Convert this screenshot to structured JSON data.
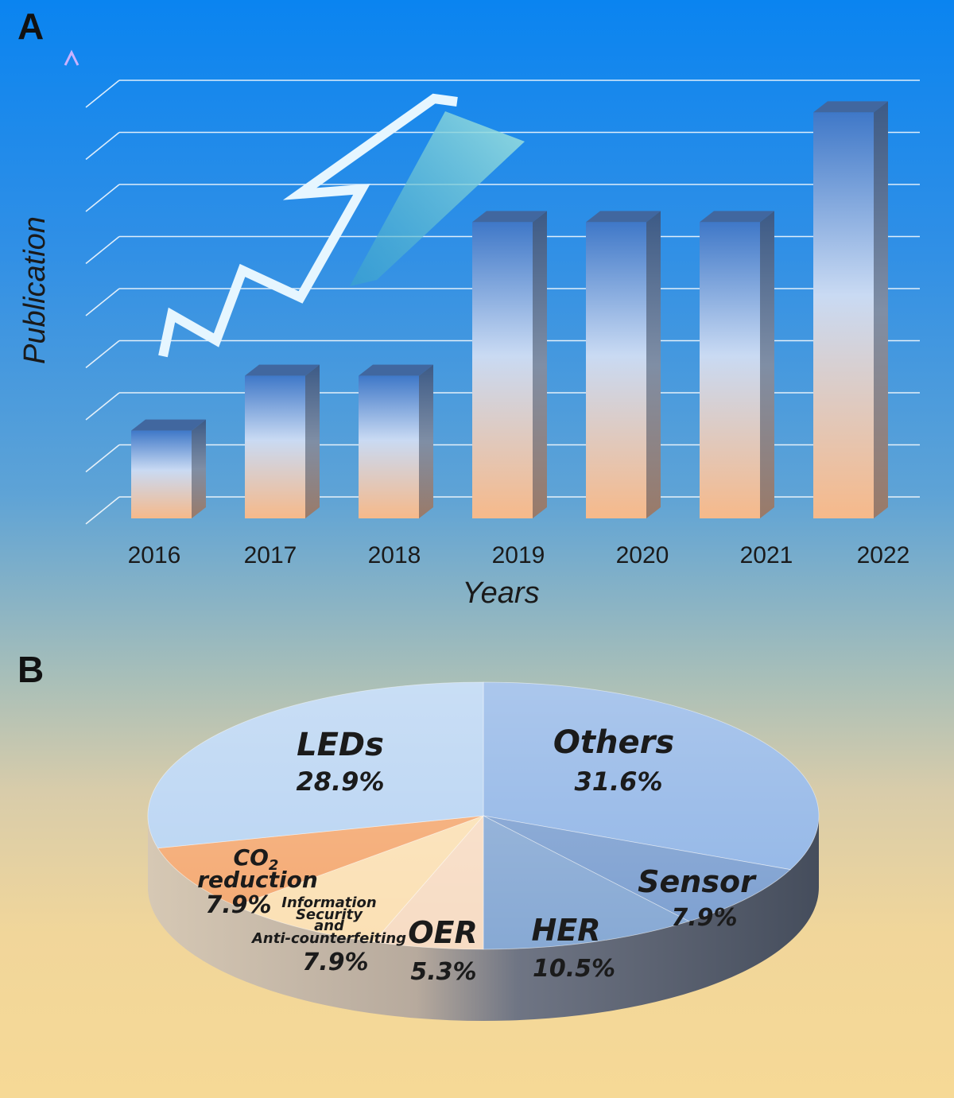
{
  "panels": {
    "a_label": "A",
    "b_label": "B"
  },
  "chart_data": [
    {
      "type": "bar",
      "title": "",
      "xlabel": "Years",
      "ylabel": "Publication",
      "categories": [
        "2016",
        "2017",
        "2018",
        "2019",
        "2020",
        "2021",
        "2022"
      ],
      "values": [
        1.6,
        2.6,
        2.6,
        5.4,
        5.4,
        5.4,
        7.4
      ],
      "ylim": [
        0,
        8
      ],
      "grid": true,
      "colors": {
        "bar_top": "#3f78c8",
        "bar_mid": "#c9daf3",
        "bar_bottom": "#f6b98a",
        "side": "#5a6f8c"
      }
    },
    {
      "type": "pie",
      "slices": [
        {
          "name": "Others",
          "value": 31.6,
          "label": "31.6%",
          "color": "#8fb4e6"
        },
        {
          "name": "Sensor",
          "value": 7.9,
          "label": "7.9%",
          "color": "#7c9fd0"
        },
        {
          "name": "HER",
          "value": 10.5,
          "label": "10.5%",
          "color": "#87a9d4"
        },
        {
          "name": "OER",
          "value": 5.3,
          "label": "5.3%",
          "color": "#f7dcc4"
        },
        {
          "name": "Information Security and Anti-counterfeiting",
          "value": 7.9,
          "label": "7.9%",
          "color": "#fbe0b4"
        },
        {
          "name": "CO2 reduction",
          "value": 7.9,
          "label": "7.9%",
          "color": "#f4a870"
        },
        {
          "name": "LEDs",
          "value": 28.9,
          "label": "28.9%",
          "color": "#b7d3f2"
        }
      ]
    }
  ],
  "pie_text": {
    "leds": "LEDs",
    "leds_pct": "28.9%",
    "others": "Others",
    "others_pct": "31.6%",
    "co2_a": "CO",
    "co2_sub": "2",
    "co2_b": "reduction",
    "co2_pct": "7.9%",
    "info_1": "Information",
    "info_2": "Security",
    "info_3": "and",
    "info_4": "Anti-counterfeiting",
    "info_pct": "7.9%",
    "oer": "OER",
    "oer_pct": "5.3%",
    "her": "HER",
    "her_pct": "10.5%",
    "sensor": "Sensor",
    "sensor_pct": "7.9%"
  }
}
